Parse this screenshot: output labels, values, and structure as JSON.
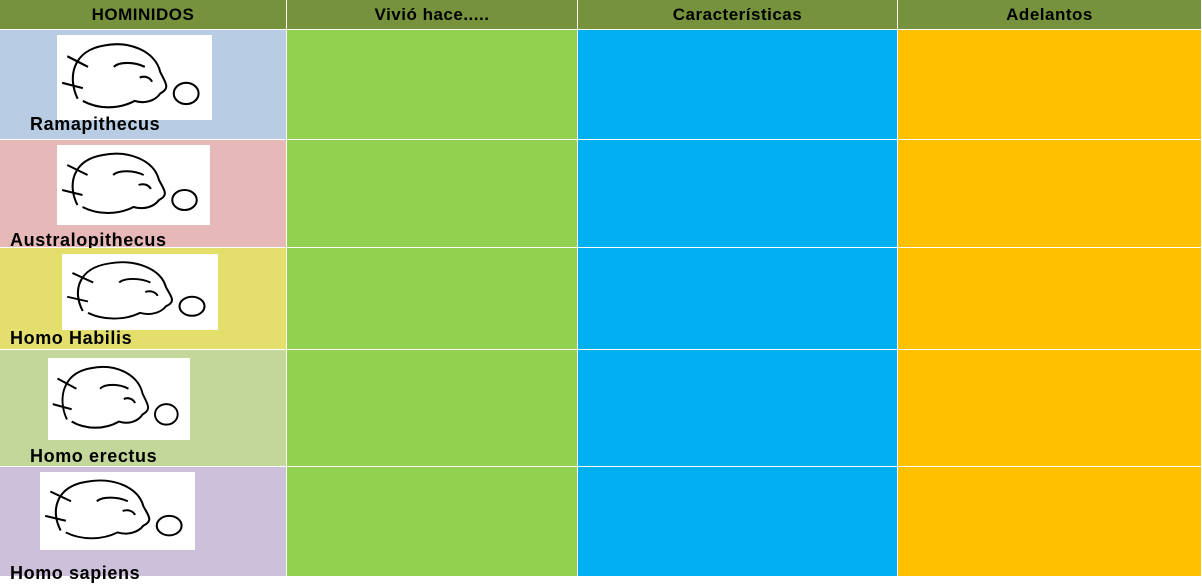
{
  "table": {
    "header": [
      "HOMINIDOS",
      "Vivió hace.....",
      "Características",
      "Adelantos"
    ],
    "rows": [
      {
        "name": "Ramapithecus"
      },
      {
        "name": "Australopithecus"
      },
      {
        "name": "Homo Habilis"
      },
      {
        "name": "Homo erectus"
      },
      {
        "name": "Homo sapiens"
      }
    ]
  }
}
